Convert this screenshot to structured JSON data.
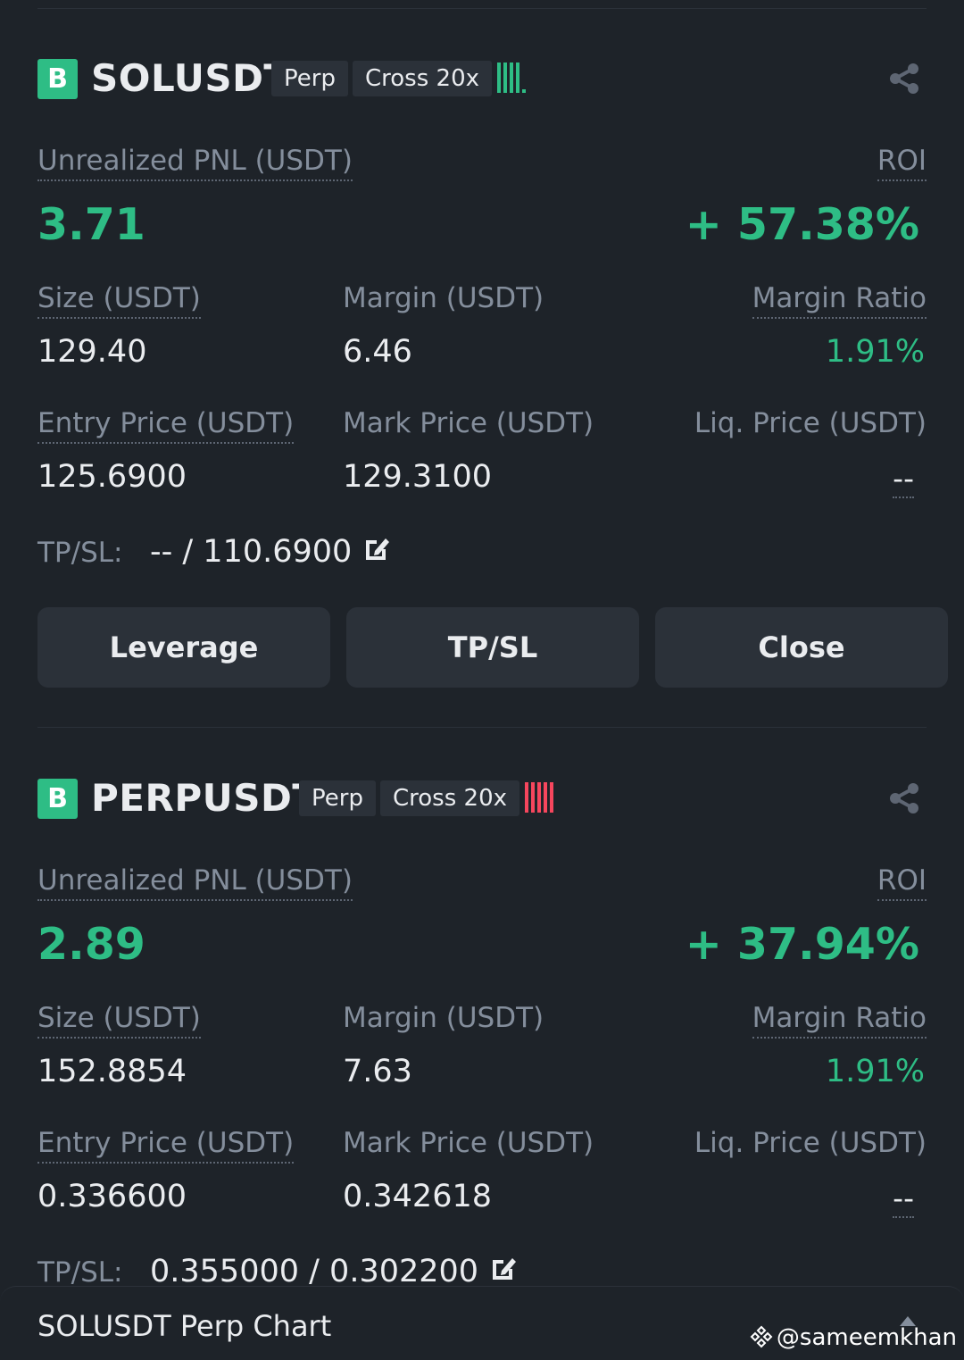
{
  "colors": {
    "green": "#2ebd85",
    "red": "#f6465d",
    "background": "#1e2329",
    "button": "#2b3139",
    "muted": "#848e9c"
  },
  "positions": [
    {
      "badge": "B",
      "symbol": "SOLUSDT",
      "type_tag": "Perp",
      "margin_tag": "Cross 20x",
      "risk_color": "green",
      "pnl_label": "Unrealized PNL (USDT)",
      "roi_label": "ROI",
      "pnl_value": "3.71",
      "roi_value": "+ 57.38%",
      "size_label": "Size (USDT)",
      "size_value": "129.40",
      "margin_label": "Margin (USDT)",
      "margin_value": "6.46",
      "margin_ratio_label": "Margin Ratio",
      "margin_ratio_value": "1.91%",
      "entry_label": "Entry Price (USDT)",
      "entry_value": "125.6900",
      "mark_label": "Mark Price (USDT)",
      "mark_value": "129.3100",
      "liq_label": "Liq. Price (USDT)",
      "liq_value": "--",
      "tpsl_label": "TP/SL:",
      "tpsl_value": "-- / 110.6900",
      "buttons": {
        "leverage": "Leverage",
        "tpsl": "TP/SL",
        "close": "Close"
      }
    },
    {
      "badge": "B",
      "symbol": "PERPUSDT",
      "type_tag": "Perp",
      "margin_tag": "Cross 20x",
      "risk_color": "red",
      "pnl_label": "Unrealized PNL (USDT)",
      "roi_label": "ROI",
      "pnl_value": "2.89",
      "roi_value": "+ 37.94%",
      "size_label": "Size (USDT)",
      "size_value": "152.8854",
      "margin_label": "Margin (USDT)",
      "margin_value": "7.63",
      "margin_ratio_label": "Margin Ratio",
      "margin_ratio_value": "1.91%",
      "entry_label": "Entry Price (USDT)",
      "entry_value": "0.336600",
      "mark_label": "Mark Price (USDT)",
      "mark_value": "0.342618",
      "liq_label": "Liq. Price (USDT)",
      "liq_value": "--",
      "tpsl_label": "TP/SL:",
      "tpsl_value": "0.355000 / 0.302200"
    }
  ],
  "chart_bar": {
    "title": "SOLUSDT Perp Chart",
    "watermark": "@sameemkhan"
  }
}
